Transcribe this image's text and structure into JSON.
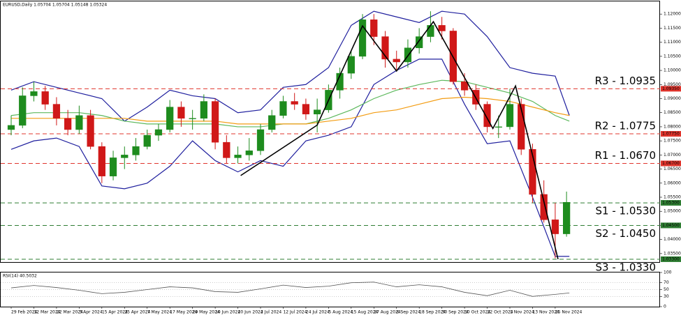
{
  "chart_data": [
    {
      "type": "candlestick",
      "title": "EURUSD,Daily 1.05704 1.05704 1.05148 1.05324",
      "x": [
        0,
        4,
        8,
        12,
        16,
        20,
        24,
        28,
        32,
        36,
        40,
        44,
        48,
        52,
        56,
        60,
        64,
        68,
        72,
        76,
        80,
        84,
        88,
        92,
        96,
        100,
        104,
        108,
        112,
        116,
        120,
        124,
        128,
        132,
        136,
        140,
        144,
        148,
        152,
        156,
        160,
        164,
        168,
        172,
        176,
        180,
        184,
        188,
        192,
        196
      ],
      "open": [
        1.079,
        1.0805,
        1.091,
        1.0925,
        1.088,
        1.083,
        1.079,
        1.084,
        1.073,
        1.0625,
        1.069,
        1.07,
        1.073,
        1.077,
        1.079,
        1.087,
        1.083,
        1.083,
        1.089,
        1.0745,
        1.069,
        1.07,
        1.0715,
        1.079,
        1.084,
        1.089,
        1.088,
        1.0845,
        1.086,
        1.093,
        1.099,
        1.105,
        1.118,
        1.112,
        1.104,
        1.103,
        1.108,
        1.112,
        1.116,
        1.114,
        1.096,
        1.093,
        1.088,
        1.08,
        1.08,
        1.088,
        1.072,
        1.056,
        1.047,
        1.042
      ],
      "high": [
        1.084,
        1.094,
        1.096,
        1.0945,
        1.0905,
        1.086,
        1.0875,
        1.086,
        1.0745,
        1.0715,
        1.073,
        1.076,
        1.079,
        1.081,
        1.0895,
        1.089,
        1.086,
        1.0915,
        1.09,
        1.077,
        1.073,
        1.076,
        1.081,
        1.086,
        1.091,
        1.092,
        1.09,
        1.09,
        1.095,
        1.101,
        1.107,
        1.12,
        1.12,
        1.114,
        1.107,
        1.111,
        1.115,
        1.121,
        1.119,
        1.115,
        1.099,
        1.095,
        1.089,
        1.084,
        1.0935,
        1.09,
        1.074,
        1.061,
        1.053,
        1.057
      ],
      "low": [
        1.077,
        1.0795,
        1.089,
        1.086,
        1.0805,
        1.077,
        1.0775,
        1.072,
        1.06,
        1.061,
        1.065,
        1.068,
        1.072,
        1.075,
        1.078,
        1.08,
        1.079,
        1.082,
        1.072,
        1.067,
        1.067,
        1.068,
        1.07,
        1.078,
        1.083,
        1.086,
        1.0825,
        1.078,
        1.085,
        1.09,
        1.097,
        1.104,
        1.109,
        1.101,
        1.1,
        1.101,
        1.106,
        1.11,
        1.111,
        1.095,
        1.091,
        1.086,
        1.078,
        1.076,
        1.079,
        1.07,
        1.053,
        1.046,
        1.0333,
        1.041
      ],
      "close": [
        1.0805,
        1.091,
        1.0925,
        1.088,
        1.083,
        1.079,
        1.084,
        1.073,
        1.0625,
        1.069,
        1.07,
        1.073,
        1.077,
        1.079,
        1.087,
        1.083,
        1.083,
        1.089,
        1.0745,
        1.069,
        1.07,
        1.0715,
        1.079,
        1.084,
        1.089,
        1.088,
        1.0845,
        1.086,
        1.093,
        1.099,
        1.105,
        1.118,
        1.112,
        1.104,
        1.103,
        1.108,
        1.112,
        1.116,
        1.114,
        1.096,
        1.093,
        1.088,
        1.08,
        1.08,
        1.088,
        1.072,
        1.056,
        1.047,
        1.042,
        1.0532
      ],
      "up_color": "#1e8c1e",
      "down_color": "#d01818",
      "xlim": [
        -3.7,
        229
      ],
      "ylim": [
        1.032,
        1.1245
      ],
      "yticks": [
        {
          "value": 1.035,
          "label": "1.03500"
        },
        {
          "value": 1.04,
          "label": "1.04000"
        },
        {
          "value": 1.045,
          "label": "1.04500"
        },
        {
          "value": 1.05,
          "label": "1.05000"
        },
        {
          "value": 1.055,
          "label": "1.05500"
        },
        {
          "value": 1.06,
          "label": "1.06000"
        },
        {
          "value": 1.065,
          "label": "1.06500"
        },
        {
          "value": 1.07,
          "label": "1.07000"
        },
        {
          "value": 1.075,
          "label": "1.07500"
        },
        {
          "value": 1.08,
          "label": "1.08000"
        },
        {
          "value": 1.085,
          "label": "1.08500"
        },
        {
          "value": 1.09,
          "label": "1.09000"
        },
        {
          "value": 1.095,
          "label": "1.09500"
        },
        {
          "value": 1.1,
          "label": "1.10000"
        },
        {
          "value": 1.105,
          "label": "1.10500"
        },
        {
          "value": 1.11,
          "label": "1.11000"
        },
        {
          "value": 1.115,
          "label": "1.11500"
        },
        {
          "value": 1.12,
          "label": "1.12000"
        }
      ],
      "bands": {
        "x": [
          0,
          8,
          16,
          24,
          32,
          40,
          48,
          56,
          64,
          72,
          80,
          88,
          96,
          104,
          112,
          120,
          128,
          136,
          144,
          152,
          160,
          168,
          176,
          184,
          192,
          197
        ],
        "series": [
          {
            "color": "#1f1f9e",
            "values": [
              1.093,
              1.096,
              1.094,
              1.092,
              1.09,
              1.082,
              1.087,
              1.093,
              1.091,
              1.09,
              1.085,
              1.086,
              1.094,
              1.095,
              1.101,
              1.116,
              1.121,
              1.119,
              1.117,
              1.121,
              1.12,
              1.112,
              1.101,
              1.099,
              1.098,
              1.084
            ]
          },
          {
            "color": "#1f1f9e",
            "values": [
              1.072,
              1.075,
              1.076,
              1.073,
              1.059,
              1.058,
              1.06,
              1.066,
              1.075,
              1.068,
              1.064,
              1.068,
              1.066,
              1.075,
              1.077,
              1.08,
              1.095,
              1.1,
              1.104,
              1.104,
              1.088,
              1.074,
              1.075,
              1.055,
              1.034,
              1.034
            ]
          },
          {
            "color": "#5cb85c",
            "values": [
              1.084,
              1.085,
              1.085,
              1.085,
              1.084,
              1.082,
              1.081,
              1.081,
              1.081,
              1.081,
              1.08,
              1.08,
              1.081,
              1.081,
              1.083,
              1.086,
              1.09,
              1.093,
              1.095,
              1.0965,
              1.096,
              1.094,
              1.092,
              1.089,
              1.084,
              1.082
            ]
          },
          {
            "color": "#f39c12",
            "values": [
              1.083,
              1.083,
              1.083,
              1.083,
              1.083,
              1.083,
              1.082,
              1.082,
              1.082,
              1.082,
              1.081,
              1.081,
              1.081,
              1.081,
              1.082,
              1.083,
              1.085,
              1.086,
              1.088,
              1.09,
              1.0905,
              1.09,
              1.089,
              1.087,
              1.085,
              1.084
            ]
          }
        ]
      },
      "trendline_color": "#000000",
      "trendlines": [
        {
          "x": [
            81,
            108,
            124,
            136,
            149,
            170,
            178,
            193
          ],
          "values": [
            1.0627,
            1.0806,
            1.1158,
            1.0998,
            1.1173,
            1.0794,
            1.0945,
            1.033
          ]
        }
      ],
      "levels": [
        {
          "label": "R3 - 1.0935",
          "value": 1.0935,
          "tag": "1.09350",
          "color": "#e0342c",
          "side": "above"
        },
        {
          "label": "R2 - 1.0775",
          "value": 1.0775,
          "tag": "1.07750",
          "color": "#e0342c",
          "side": "above"
        },
        {
          "label": "R1 - 1.0670",
          "value": 1.067,
          "tag": "1.06700",
          "color": "#e0342c",
          "side": "above"
        },
        {
          "label": "S1 - 1.0530",
          "value": 1.053,
          "tag": "1.05300",
          "color": "#2e7d32",
          "side": "below"
        },
        {
          "label": "S2 - 1.0450",
          "value": 1.045,
          "tag": "1.04500",
          "color": "#2e7d32",
          "side": "below"
        },
        {
          "label": "S3 - 1.0330",
          "value": 1.033,
          "tag": "1.03300",
          "color": "#2e7d32",
          "side": "below"
        }
      ]
    },
    {
      "type": "line",
      "title": "RSI(14) 40.5032",
      "x": [
        0,
        8,
        16,
        24,
        32,
        40,
        48,
        56,
        64,
        72,
        80,
        88,
        96,
        104,
        112,
        120,
        128,
        136,
        144,
        152,
        160,
        168,
        176,
        184,
        192,
        197
      ],
      "values": [
        55,
        62,
        56,
        48,
        38,
        42,
        50,
        58,
        55,
        44,
        42,
        52,
        63,
        56,
        60,
        70,
        72,
        58,
        64,
        58,
        42,
        32,
        48,
        30,
        36,
        40
      ],
      "color": "#555555",
      "xlim": [
        -3.7,
        229
      ],
      "ylim": [
        0,
        100
      ],
      "yticks": [
        0,
        30,
        50,
        70,
        100
      ],
      "grid": true,
      "xticks": [
        {
          "value": 0,
          "label": "29 Feb 2024"
        },
        {
          "value": 8,
          "label": "12 Mar 2024"
        },
        {
          "value": 16,
          "label": "22 Mar 2024"
        },
        {
          "value": 24,
          "label": "3 Apr 2024"
        },
        {
          "value": 32,
          "label": "15 Apr 2024"
        },
        {
          "value": 40,
          "label": "25 Apr 2024"
        },
        {
          "value": 48,
          "label": "7 May 2024"
        },
        {
          "value": 56,
          "label": "17 May 2024"
        },
        {
          "value": 64,
          "label": "29 May 2024"
        },
        {
          "value": 72,
          "label": "10 Jun 2024"
        },
        {
          "value": 80,
          "label": "20 Jun 2024"
        },
        {
          "value": 88,
          "label": "2 Jul 2024"
        },
        {
          "value": 96,
          "label": "12 Jul 2024"
        },
        {
          "value": 104,
          "label": "24 Jul 2024"
        },
        {
          "value": 112,
          "label": "5 Aug 2024"
        },
        {
          "value": 120,
          "label": "15 Aug 2024"
        },
        {
          "value": 128,
          "label": "27 Aug 2024"
        },
        {
          "value": 136,
          "label": "6 Sep 2024"
        },
        {
          "value": 144,
          "label": "18 Sep 2024"
        },
        {
          "value": 152,
          "label": "30 Sep 2024"
        },
        {
          "value": 160,
          "label": "10 Oct 2024"
        },
        {
          "value": 168,
          "label": "22 Oct 2024"
        },
        {
          "value": 176,
          "label": "1 Nov 2024"
        },
        {
          "value": 184,
          "label": "13 Nov 2024"
        },
        {
          "value": 192,
          "label": "25 Nov 2024"
        }
      ]
    }
  ]
}
